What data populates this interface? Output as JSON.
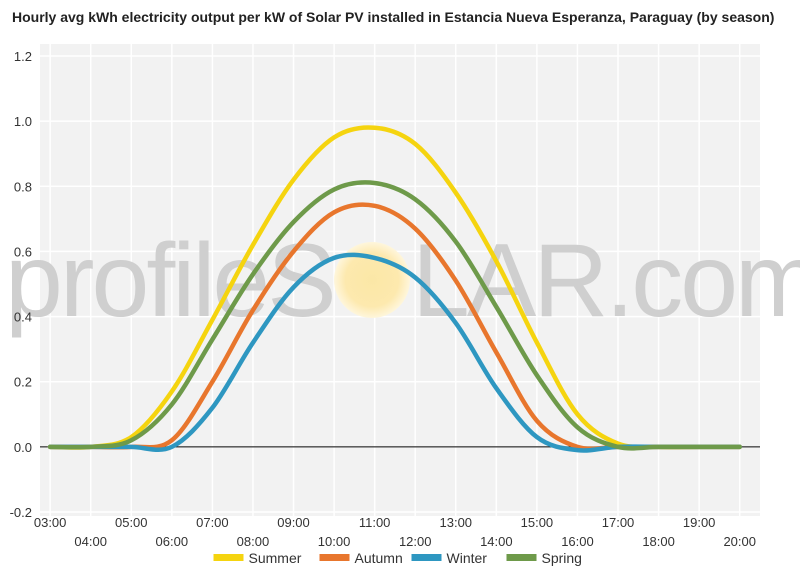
{
  "chart_data": {
    "type": "line",
    "title": "Hourly avg kWh electricity output per kW of Solar PV installed in Estancia Nueva Esperanza, Paraguay (by season)",
    "xlabel": "",
    "ylabel": "",
    "ylim": [
      -0.2,
      1.2
    ],
    "yticks": [
      "-0.2",
      "0.0",
      "0.2",
      "0.4",
      "0.6",
      "0.8",
      "1.0",
      "1.2"
    ],
    "categories": [
      "03:00",
      "04:00",
      "05:00",
      "06:00",
      "07:00",
      "08:00",
      "09:00",
      "10:00",
      "11:00",
      "12:00",
      "13:00",
      "14:00",
      "15:00",
      "16:00",
      "17:00",
      "18:00",
      "19:00",
      "20:00"
    ],
    "x_hours": [
      3,
      4,
      5,
      6,
      7,
      8,
      9,
      10,
      11,
      12,
      13,
      14,
      15,
      16,
      17,
      18,
      19,
      20
    ],
    "grid": true,
    "legend_position": "bottom",
    "series": [
      {
        "name": "Summer",
        "color": "#f5d40f",
        "values": [
          0,
          0,
          0.03,
          0.17,
          0.39,
          0.62,
          0.82,
          0.95,
          0.98,
          0.93,
          0.78,
          0.57,
          0.32,
          0.1,
          0.01,
          0,
          0,
          0
        ]
      },
      {
        "name": "Autumn",
        "color": "#e8762d",
        "values": [
          0,
          0,
          0,
          0.02,
          0.2,
          0.42,
          0.6,
          0.72,
          0.74,
          0.67,
          0.51,
          0.29,
          0.08,
          0.0,
          0,
          0,
          0,
          0
        ]
      },
      {
        "name": "Winter",
        "color": "#2e97c1",
        "values": [
          0,
          0,
          0,
          0,
          0.12,
          0.32,
          0.49,
          0.58,
          0.58,
          0.52,
          0.38,
          0.18,
          0.03,
          -0.01,
          0,
          0,
          0,
          0
        ]
      },
      {
        "name": "Spring",
        "color": "#6e9a4a",
        "values": [
          0,
          0,
          0.02,
          0.13,
          0.33,
          0.53,
          0.69,
          0.79,
          0.81,
          0.76,
          0.63,
          0.43,
          0.22,
          0.06,
          0,
          0,
          0,
          0
        ]
      }
    ]
  },
  "watermark": {
    "left": "profileS",
    "right": "LAR.com"
  }
}
